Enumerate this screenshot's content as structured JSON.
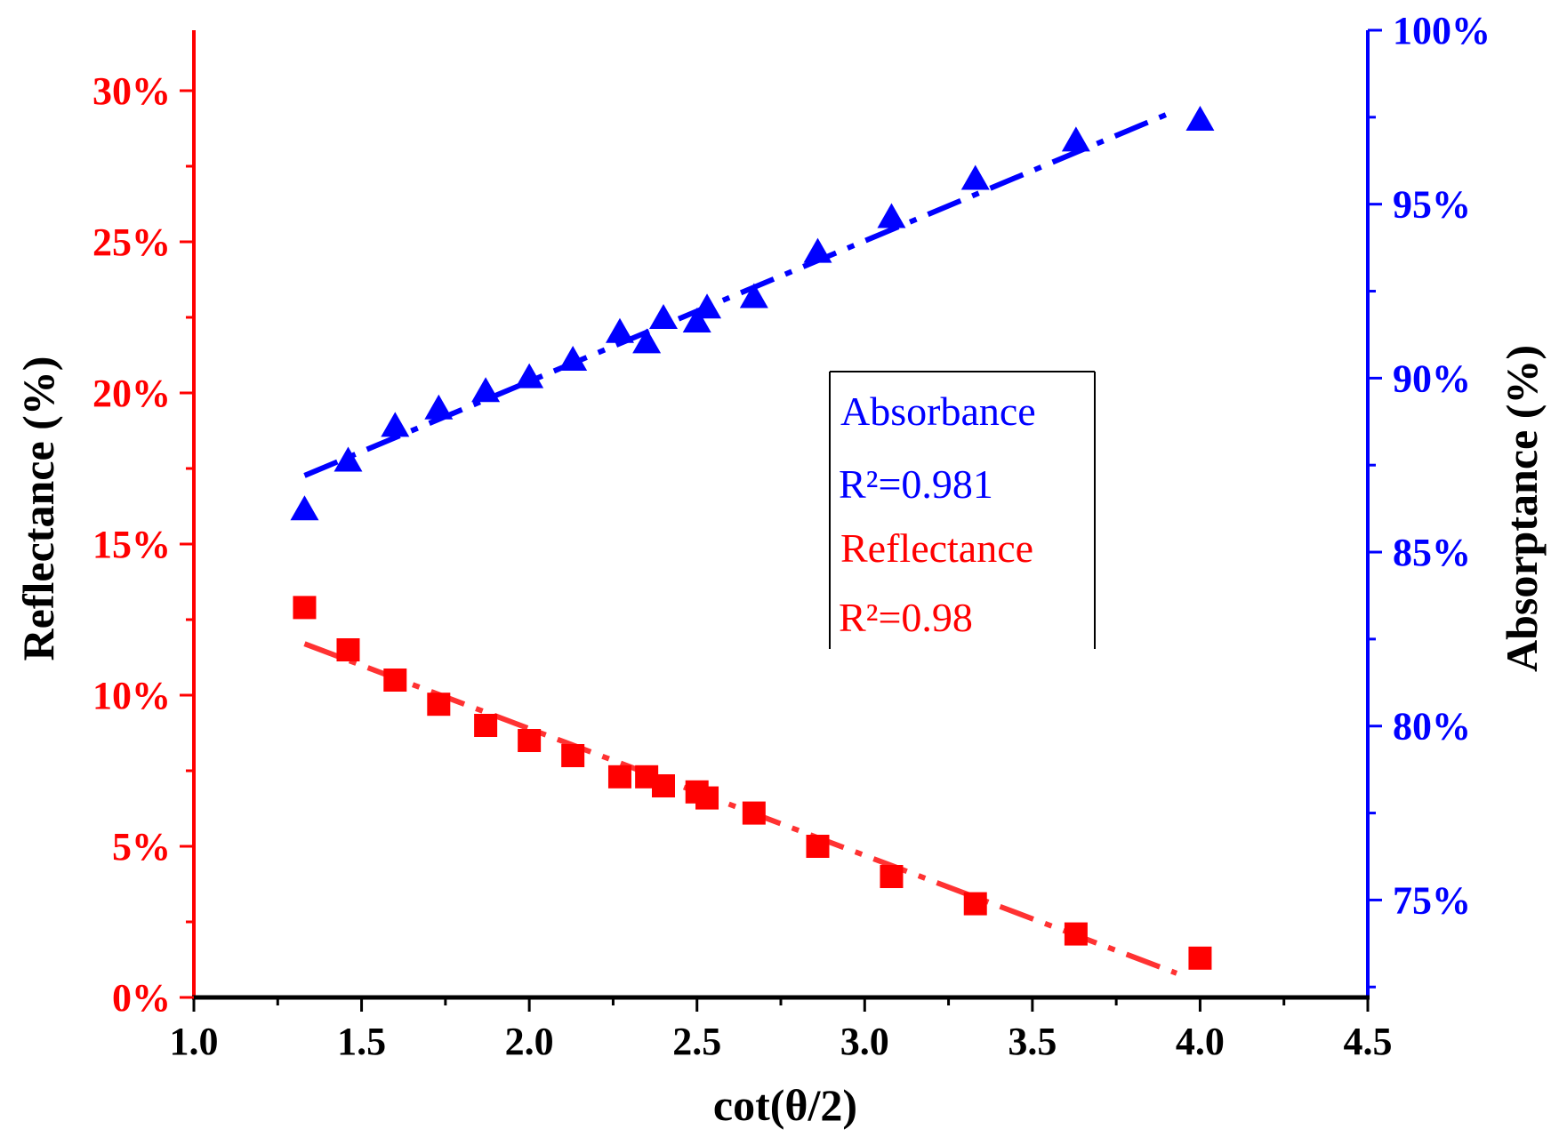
{
  "chart_data": {
    "type": "scatter",
    "title": "",
    "xlabel": "cot(θ/2)",
    "ylabel_left": "Reflectance (%)",
    "ylabel_right": "Absorptance (%)",
    "xlim": [
      1.0,
      4.5
    ],
    "ylim_left": [
      0,
      32
    ],
    "ylim_right": [
      72.2,
      100
    ],
    "x_ticks": [
      1.0,
      1.5,
      2.0,
      2.5,
      3.0,
      3.5,
      4.0,
      4.5
    ],
    "x_tick_labels": [
      "1.0",
      "1.5",
      "2.0",
      "2.5",
      "3.0",
      "3.5",
      "4.0",
      "4.5"
    ],
    "y_left_ticks": [
      0,
      5,
      10,
      15,
      20,
      25,
      30
    ],
    "y_left_tick_labels": [
      "0%",
      "5%",
      "10%",
      "15%",
      "20%",
      "25%",
      "30%"
    ],
    "y_right_ticks": [
      75,
      80,
      85,
      90,
      95,
      100
    ],
    "y_right_tick_labels": [
      "75%",
      "80%",
      "85%",
      "90%",
      "95%",
      "100%"
    ],
    "series": [
      {
        "name": "Absorbance",
        "axis": "right",
        "marker": "triangle",
        "color": "#0000ff",
        "x": [
          1.33,
          1.46,
          1.6,
          1.73,
          1.87,
          2.0,
          2.13,
          2.27,
          2.35,
          2.4,
          2.5,
          2.53,
          2.67,
          2.86,
          3.08,
          3.33,
          3.63,
          4.0
        ],
        "y": [
          86.2,
          87.6,
          88.6,
          89.1,
          89.6,
          90.0,
          90.5,
          91.3,
          91.0,
          91.7,
          91.6,
          92.0,
          92.3,
          93.6,
          94.6,
          95.7,
          96.8,
          97.4
        ],
        "fit": {
          "x": [
            1.33,
            3.93
          ],
          "y": [
            87.2,
            97.7
          ]
        }
      },
      {
        "name": "Reflectance",
        "axis": "left",
        "marker": "square",
        "color": "#ff0000",
        "x": [
          1.33,
          1.46,
          1.6,
          1.73,
          1.87,
          2.0,
          2.13,
          2.27,
          2.35,
          2.4,
          2.5,
          2.53,
          2.67,
          2.86,
          3.08,
          3.33,
          3.63,
          4.0
        ],
        "y": [
          12.9,
          11.5,
          10.5,
          9.7,
          9.0,
          8.5,
          8.0,
          7.3,
          7.3,
          7.0,
          6.8,
          6.6,
          6.1,
          5.0,
          4.0,
          3.1,
          2.1,
          1.3
        ],
        "fit": {
          "x": [
            1.33,
            3.93
          ],
          "y": [
            11.7,
            0.8
          ]
        }
      }
    ],
    "legend": {
      "position": "center-right",
      "entries": [
        {
          "label": "Absorbance",
          "stat": "R²=0.981",
          "color": "#0000ff"
        },
        {
          "label": "Reflectance",
          "stat": "R²=0.98",
          "color": "#ff0000"
        }
      ]
    },
    "colors": {
      "left_axis": "#ff0000",
      "right_axis": "#0000ff",
      "bottom_axis": "#000000"
    }
  }
}
